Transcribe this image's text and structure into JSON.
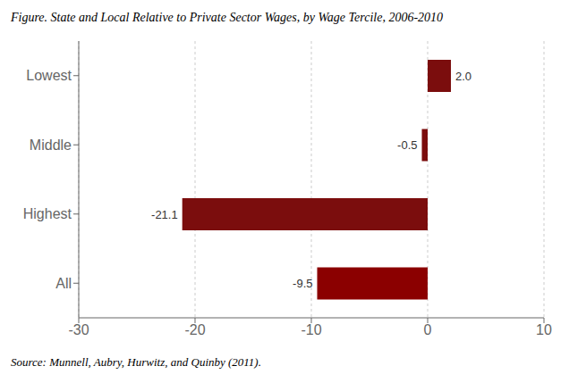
{
  "chart_data": {
    "type": "bar",
    "orientation": "horizontal",
    "title": "Figure. State and Local Relative to Private Sector Wages, by Wage Tercile, 2006-2010",
    "categories": [
      "Lowest",
      "Middle",
      "Highest",
      "All"
    ],
    "values": [
      2.0,
      -0.5,
      -21.1,
      -9.5
    ],
    "value_labels": [
      "2.0",
      "-0.5",
      "-21.1",
      "-9.5"
    ],
    "colors": [
      "#7B0D0D",
      "#7B0D0D",
      "#7B0D0D",
      "#8B0000"
    ],
    "xlim": [
      -30,
      10
    ],
    "xticks": [
      -30,
      -20,
      -10,
      0,
      10
    ],
    "grid": true,
    "data_labels": true,
    "annotations": [
      "Source: Munnell, Aubry, Hurwitz, and Quinby (2011)."
    ]
  }
}
